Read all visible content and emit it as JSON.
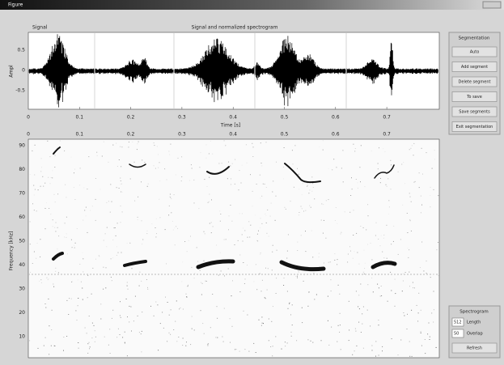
{
  "window": {
    "title": "Figure"
  },
  "signal_plot": {
    "label": "Signal",
    "title": "Signal and normalized spectrogram",
    "y_label": "Ampl",
    "x_label": "Time [s]",
    "y_ticks": [
      "0.5",
      "0",
      "-0.5"
    ],
    "x_ticks": [
      "0",
      "0.1",
      "0.2",
      "0.3",
      "0.4",
      "0.5",
      "0.6",
      "0.7"
    ]
  },
  "spectrogram_plot": {
    "y_label": "Frequency [kHz]",
    "x_ticks": [
      "0",
      "0.1",
      "0.2",
      "0.3",
      "0.4",
      "0.5",
      "0.6",
      "0.7"
    ],
    "y_ticks": [
      "90",
      "80",
      "70",
      "60",
      "50",
      "40",
      "30",
      "20",
      "10"
    ]
  },
  "segmentation_panel": {
    "title": "Segmentation",
    "buttons": [
      "Auto",
      "Add segment",
      "Delete segment",
      "To save",
      "Save segments",
      "Exit segmentation"
    ]
  },
  "spectrogram_panel": {
    "title": "Spectrogram",
    "fields": [
      {
        "value": "512",
        "label": "Length"
      },
      {
        "value": "50",
        "label": "Overlap"
      }
    ],
    "button": "Refresh"
  }
}
